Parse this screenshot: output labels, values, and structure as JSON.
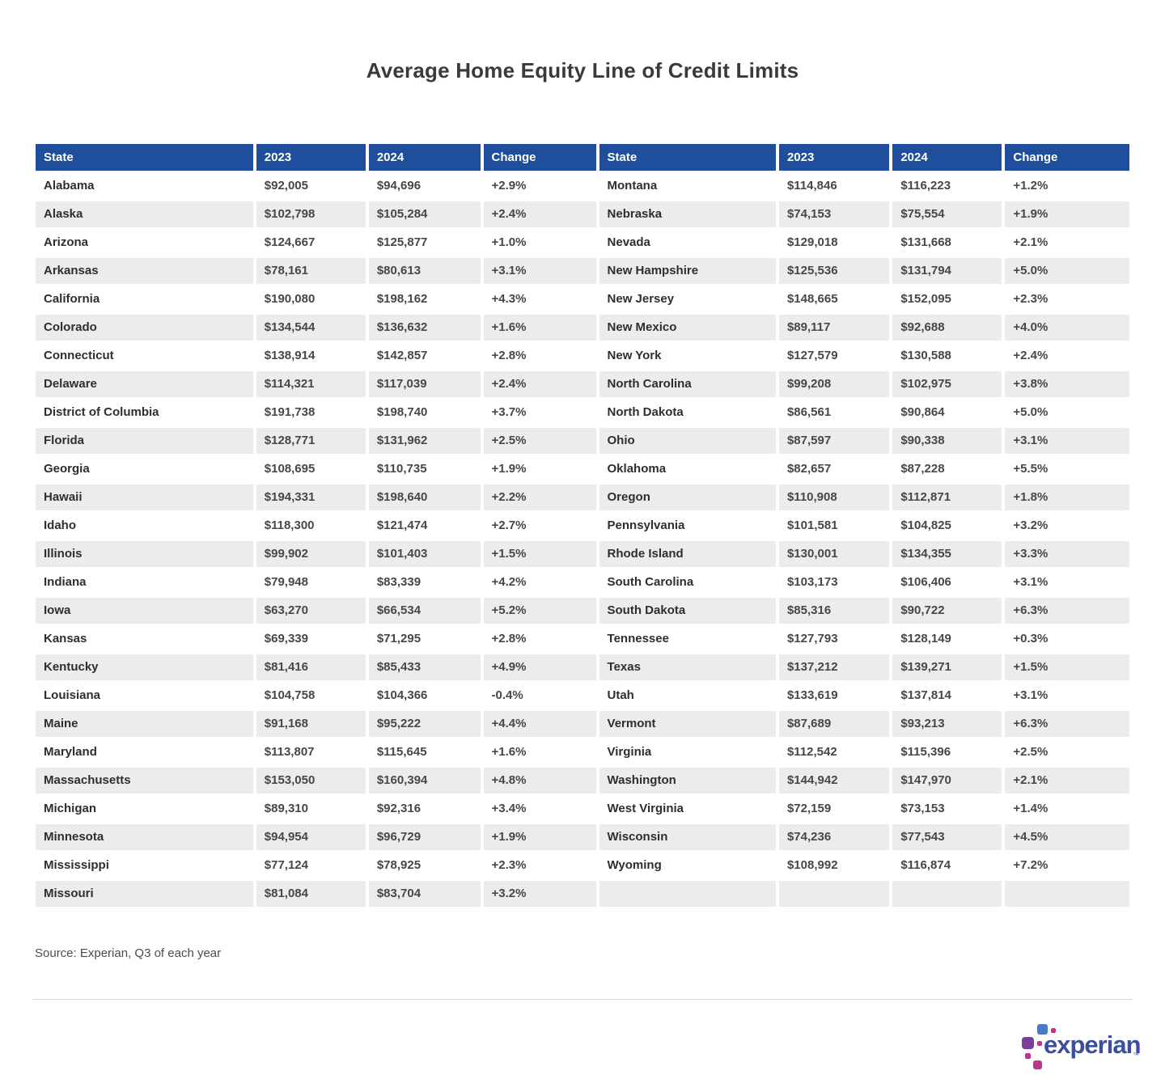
{
  "title": "Average Home Equity Line of Credit Limits",
  "source_note": "Source: Experian, Q3 of each year",
  "logo": {
    "wordmark": "experian",
    "trademark": "™"
  },
  "colors": {
    "header_bg": "#1F4F9C",
    "row_stripe": "#ECECEC",
    "title_color": "#3A3A3A",
    "state_text": "#2E2E2E",
    "value_text": "#474747",
    "source_text": "#4C4C4C",
    "divider": "#DEDEDE",
    "logo_word": "#3A4F9F",
    "logo_blue": "#4B79C4",
    "logo_purple": "#7B3F98",
    "logo_magenta": "#C0338D"
  },
  "chart_data": {
    "type": "table",
    "title": "Average Home Equity Line of Credit Limits",
    "columns": [
      "State",
      "2023",
      "2024",
      "Change"
    ],
    "layout": "two side-by-side column groups sharing one header style; left group rows 1-26 (Alabama-Missouri), right group rows 27-51 (Montana-Wyoming), last right-hand row empty",
    "rows_per_column": 26,
    "source": "Source: Experian, Q3 of each year",
    "rows": [
      [
        "Alabama",
        "$92,005",
        "$94,696",
        "+2.9%"
      ],
      [
        "Alaska",
        "$102,798",
        "$105,284",
        "+2.4%"
      ],
      [
        "Arizona",
        "$124,667",
        "$125,877",
        "+1.0%"
      ],
      [
        "Arkansas",
        "$78,161",
        "$80,613",
        "+3.1%"
      ],
      [
        "California",
        "$190,080",
        "$198,162",
        "+4.3%"
      ],
      [
        "Colorado",
        "$134,544",
        "$136,632",
        "+1.6%"
      ],
      [
        "Connecticut",
        "$138,914",
        "$142,857",
        "+2.8%"
      ],
      [
        "Delaware",
        "$114,321",
        "$117,039",
        "+2.4%"
      ],
      [
        "District of Columbia",
        "$191,738",
        "$198,740",
        "+3.7%"
      ],
      [
        "Florida",
        "$128,771",
        "$131,962",
        "+2.5%"
      ],
      [
        "Georgia",
        "$108,695",
        "$110,735",
        "+1.9%"
      ],
      [
        "Hawaii",
        "$194,331",
        "$198,640",
        "+2.2%"
      ],
      [
        "Idaho",
        "$118,300",
        "$121,474",
        "+2.7%"
      ],
      [
        "Illinois",
        "$99,902",
        "$101,403",
        "+1.5%"
      ],
      [
        "Indiana",
        "$79,948",
        "$83,339",
        "+4.2%"
      ],
      [
        "Iowa",
        "$63,270",
        "$66,534",
        "+5.2%"
      ],
      [
        "Kansas",
        "$69,339",
        "$71,295",
        "+2.8%"
      ],
      [
        "Kentucky",
        "$81,416",
        "$85,433",
        "+4.9%"
      ],
      [
        "Louisiana",
        "$104,758",
        "$104,366",
        "-0.4%"
      ],
      [
        "Maine",
        "$91,168",
        "$95,222",
        "+4.4%"
      ],
      [
        "Maryland",
        "$113,807",
        "$115,645",
        "+1.6%"
      ],
      [
        "Massachusetts",
        "$153,050",
        "$160,394",
        "+4.8%"
      ],
      [
        "Michigan",
        "$89,310",
        "$92,316",
        "+3.4%"
      ],
      [
        "Minnesota",
        "$94,954",
        "$96,729",
        "+1.9%"
      ],
      [
        "Mississippi",
        "$77,124",
        "$78,925",
        "+2.3%"
      ],
      [
        "Missouri",
        "$81,084",
        "$83,704",
        "+3.2%"
      ],
      [
        "Montana",
        "$114,846",
        "$116,223",
        "+1.2%"
      ],
      [
        "Nebraska",
        "$74,153",
        "$75,554",
        "+1.9%"
      ],
      [
        "Nevada",
        "$129,018",
        "$131,668",
        "+2.1%"
      ],
      [
        "New Hampshire",
        "$125,536",
        "$131,794",
        "+5.0%"
      ],
      [
        "New Jersey",
        "$148,665",
        "$152,095",
        "+2.3%"
      ],
      [
        "New Mexico",
        "$89,117",
        "$92,688",
        "+4.0%"
      ],
      [
        "New York",
        "$127,579",
        "$130,588",
        "+2.4%"
      ],
      [
        "North Carolina",
        "$99,208",
        "$102,975",
        "+3.8%"
      ],
      [
        "North Dakota",
        "$86,561",
        "$90,864",
        "+5.0%"
      ],
      [
        "Ohio",
        "$87,597",
        "$90,338",
        "+3.1%"
      ],
      [
        "Oklahoma",
        "$82,657",
        "$87,228",
        "+5.5%"
      ],
      [
        "Oregon",
        "$110,908",
        "$112,871",
        "+1.8%"
      ],
      [
        "Pennsylvania",
        "$101,581",
        "$104,825",
        "+3.2%"
      ],
      [
        "Rhode Island",
        "$130,001",
        "$134,355",
        "+3.3%"
      ],
      [
        "South Carolina",
        "$103,173",
        "$106,406",
        "+3.1%"
      ],
      [
        "South Dakota",
        "$85,316",
        "$90,722",
        "+6.3%"
      ],
      [
        "Tennessee",
        "$127,793",
        "$128,149",
        "+0.3%"
      ],
      [
        "Texas",
        "$137,212",
        "$139,271",
        "+1.5%"
      ],
      [
        "Utah",
        "$133,619",
        "$137,814",
        "+3.1%"
      ],
      [
        "Vermont",
        "$87,689",
        "$93,213",
        "+6.3%"
      ],
      [
        "Virginia",
        "$112,542",
        "$115,396",
        "+2.5%"
      ],
      [
        "Washington",
        "$144,942",
        "$147,970",
        "+2.1%"
      ],
      [
        "West Virginia",
        "$72,159",
        "$73,153",
        "+1.4%"
      ],
      [
        "Wisconsin",
        "$74,236",
        "$77,543",
        "+4.5%"
      ],
      [
        "Wyoming",
        "$108,992",
        "$116,874",
        "+7.2%"
      ]
    ]
  }
}
